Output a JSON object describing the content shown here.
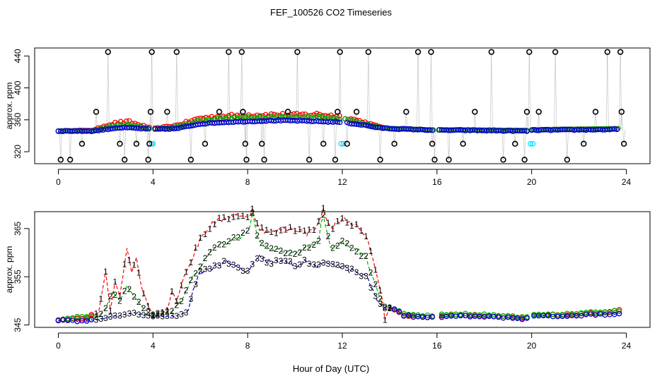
{
  "title": "FEF_100526  CO2 Timeseries",
  "xlabel": "Hour of Day (UTC)",
  "colors": {
    "series1": "#ff0000",
    "series2": "#00b000",
    "series3": "#0000cc",
    "flagged": "#000000",
    "cyan": "#00e0ff",
    "connector": "#999999"
  },
  "chart_data": [
    {
      "type": "scatter",
      "panel": "top",
      "ylabel": "approx. ppm",
      "xlim": [
        -1,
        25
      ],
      "ylim": [
        305,
        450
      ],
      "xticks": [
        0,
        4,
        8,
        12,
        16,
        20,
        24
      ],
      "yticks": [
        320,
        360,
        400,
        440
      ],
      "xtick_labels": [
        "0",
        "4",
        "8",
        "12",
        "16",
        "20",
        "24"
      ],
      "ytick_labels": [
        "320",
        "360",
        "400",
        "440"
      ],
      "baseline_keypoints": {
        "x": [
          0,
          1.5,
          2.0,
          2.5,
          3.0,
          3.5,
          3.9,
          4.0,
          5.0,
          5.5,
          6.0,
          6.5,
          7.0,
          8.0,
          9.0,
          10.0,
          11.0,
          12.0,
          12.5,
          13.0,
          13.5,
          14.0,
          15.0,
          15.9,
          16.0,
          17.0,
          19.8,
          20.0,
          23.7
        ],
        "y": [
          346,
          346,
          348,
          350,
          350,
          349,
          348,
          348,
          349,
          352,
          355,
          356,
          357,
          358,
          359,
          359,
          358,
          357,
          355,
          353,
          350,
          349,
          348,
          347,
          347,
          347,
          346,
          347,
          348
        ]
      },
      "series_offsets": {
        "series1": [
          [
            0,
            0
          ],
          [
            1.5,
            1
          ],
          [
            2.0,
            6
          ],
          [
            3.0,
            8
          ],
          [
            4.0,
            1
          ],
          [
            6.0,
            8
          ],
          [
            8.0,
            9
          ],
          [
            10.0,
            8
          ],
          [
            11.0,
            10
          ],
          [
            12.0,
            8
          ],
          [
            13.0,
            4
          ],
          [
            14.0,
            0
          ],
          [
            24.0,
            1
          ]
        ],
        "series2": [
          [
            0,
            0
          ],
          [
            1.5,
            0
          ],
          [
            2.0,
            3
          ],
          [
            3.0,
            4
          ],
          [
            4.0,
            0
          ],
          [
            6.0,
            5
          ],
          [
            8.0,
            6
          ],
          [
            10.0,
            5
          ],
          [
            11.0,
            7
          ],
          [
            12.0,
            5
          ],
          [
            13.0,
            2
          ],
          [
            14.0,
            0
          ],
          [
            24.0,
            1
          ]
        ]
      },
      "flagged_points": [
        [
          0.1,
          310
        ],
        [
          0.5,
          310
        ],
        [
          1.0,
          330
        ],
        [
          1.6,
          370
        ],
        [
          2.1,
          445
        ],
        [
          2.6,
          330
        ],
        [
          2.8,
          310
        ],
        [
          3.3,
          330
        ],
        [
          3.8,
          310
        ],
        [
          3.85,
          330
        ],
        [
          3.9,
          370
        ],
        [
          3.95,
          445
        ],
        [
          4.6,
          370
        ],
        [
          5.0,
          445
        ],
        [
          5.6,
          310
        ],
        [
          6.2,
          330
        ],
        [
          6.8,
          370
        ],
        [
          7.2,
          445
        ],
        [
          7.75,
          445
        ],
        [
          7.8,
          370
        ],
        [
          7.9,
          330
        ],
        [
          7.95,
          310
        ],
        [
          8.6,
          330
        ],
        [
          8.7,
          310
        ],
        [
          9.7,
          370
        ],
        [
          10.1,
          445
        ],
        [
          10.6,
          310
        ],
        [
          11.2,
          330
        ],
        [
          11.7,
          310
        ],
        [
          11.8,
          370
        ],
        [
          11.9,
          445
        ],
        [
          12.2,
          330
        ],
        [
          12.6,
          370
        ],
        [
          13.1,
          445
        ],
        [
          13.6,
          310
        ],
        [
          14.2,
          330
        ],
        [
          14.7,
          370
        ],
        [
          15.2,
          445
        ],
        [
          15.75,
          445
        ],
        [
          15.8,
          330
        ],
        [
          15.9,
          310
        ],
        [
          16.5,
          310
        ],
        [
          17.1,
          330
        ],
        [
          17.6,
          370
        ],
        [
          18.3,
          445
        ],
        [
          18.8,
          310
        ],
        [
          19.3,
          330
        ],
        [
          19.7,
          310
        ],
        [
          19.8,
          370
        ],
        [
          19.9,
          445
        ],
        [
          20.3,
          370
        ],
        [
          21.0,
          445
        ],
        [
          21.5,
          310
        ],
        [
          22.2,
          330
        ],
        [
          22.7,
          370
        ],
        [
          23.2,
          445
        ],
        [
          23.75,
          445
        ],
        [
          23.8,
          370
        ],
        [
          23.9,
          330
        ]
      ],
      "cyan_points": [
        [
          3.95,
          330
        ],
        [
          4.0,
          330
        ],
        [
          11.95,
          330
        ],
        [
          12.05,
          330
        ],
        [
          19.95,
          330
        ],
        [
          20.05,
          330
        ]
      ]
    },
    {
      "type": "line",
      "panel": "bottom",
      "ylabel": "approx. ppm",
      "xlim": [
        -1,
        25
      ],
      "ylim": [
        344.5,
        368.5
      ],
      "xticks": [
        0,
        4,
        8,
        12,
        16,
        20,
        24
      ],
      "yticks": [
        345,
        355,
        365
      ],
      "xtick_labels": [
        "0",
        "4",
        "8",
        "12",
        "16",
        "20",
        "24"
      ],
      "ytick_labels": [
        "345",
        "355",
        "365"
      ],
      "series": [
        {
          "name": "1",
          "keypoints": [
            [
              0,
              346
            ],
            [
              1.0,
              346.3
            ],
            [
              1.7,
              347.5
            ],
            [
              2.0,
              356
            ],
            [
              2.2,
              348
            ],
            [
              2.4,
              354
            ],
            [
              2.6,
              351
            ],
            [
              2.9,
              361
            ],
            [
              3.1,
              356
            ],
            [
              3.3,
              359
            ],
            [
              3.5,
              353
            ],
            [
              3.8,
              349
            ],
            [
              4.0,
              347
            ],
            [
              4.6,
              348
            ],
            [
              4.8,
              352
            ],
            [
              5.0,
              350
            ],
            [
              5.3,
              355
            ],
            [
              5.6,
              358
            ],
            [
              6.0,
              363
            ],
            [
              6.5,
              366
            ],
            [
              7.0,
              367
            ],
            [
              7.5,
              368
            ],
            [
              8.0,
              367
            ],
            [
              8.2,
              369
            ],
            [
              8.5,
              365
            ],
            [
              9.0,
              364
            ],
            [
              9.5,
              365
            ],
            [
              10.0,
              365
            ],
            [
              10.5,
              364
            ],
            [
              11.0,
              366
            ],
            [
              11.2,
              369
            ],
            [
              11.5,
              365
            ],
            [
              12.0,
              367
            ],
            [
              12.5,
              366
            ],
            [
              13.0,
              363
            ],
            [
              13.3,
              359
            ],
            [
              13.7,
              350
            ],
            [
              13.8,
              346
            ],
            [
              14.0,
              348.5
            ],
            [
              14.3,
              348
            ],
            [
              14.6,
              347
            ],
            [
              15.0,
              346.8
            ],
            [
              15.9,
              346.6
            ],
            [
              16.5,
              347.2
            ],
            [
              18.0,
              346.9
            ],
            [
              19.8,
              346.5
            ],
            [
              20.0,
              347
            ],
            [
              22.0,
              347.2
            ],
            [
              23.0,
              347.6
            ],
            [
              23.7,
              348
            ]
          ]
        },
        {
          "name": "2",
          "keypoints": [
            [
              0,
              346
            ],
            [
              0.5,
              346.5
            ],
            [
              1.7,
              346.8
            ],
            [
              2.0,
              348.5
            ],
            [
              2.3,
              352
            ],
            [
              2.6,
              350
            ],
            [
              2.9,
              353
            ],
            [
              3.2,
              351
            ],
            [
              3.5,
              349
            ],
            [
              4.0,
              347
            ],
            [
              4.8,
              348
            ],
            [
              5.2,
              350
            ],
            [
              5.6,
              354
            ],
            [
              6.0,
              357
            ],
            [
              6.5,
              361
            ],
            [
              7.0,
              362
            ],
            [
              7.5,
              363
            ],
            [
              8.0,
              364
            ],
            [
              8.2,
              368
            ],
            [
              8.5,
              362
            ],
            [
              9.0,
              361
            ],
            [
              9.5,
              360
            ],
            [
              10.0,
              360
            ],
            [
              10.5,
              361
            ],
            [
              11.0,
              363
            ],
            [
              11.2,
              368
            ],
            [
              11.5,
              361
            ],
            [
              12.0,
              362
            ],
            [
              12.5,
              361
            ],
            [
              13.0,
              359
            ],
            [
              13.3,
              355
            ],
            [
              13.7,
              349
            ],
            [
              14.0,
              348.6
            ],
            [
              14.3,
              348.2
            ],
            [
              14.6,
              347.3
            ],
            [
              15.0,
              347
            ],
            [
              15.9,
              346.8
            ],
            [
              16.5,
              347.3
            ],
            [
              18.0,
              347.1
            ],
            [
              19.8,
              346.5
            ],
            [
              20.0,
              347
            ],
            [
              22.0,
              347.3
            ],
            [
              23.0,
              347.8
            ],
            [
              23.7,
              348
            ]
          ]
        },
        {
          "name": "3",
          "keypoints": [
            [
              0,
              346
            ],
            [
              1.0,
              345.8
            ],
            [
              1.7,
              346.2
            ],
            [
              2.5,
              346.8
            ],
            [
              3.0,
              347.5
            ],
            [
              3.5,
              347.2
            ],
            [
              4.0,
              346.8
            ],
            [
              5.0,
              346.8
            ],
            [
              5.5,
              348
            ],
            [
              5.7,
              352
            ],
            [
              6.0,
              356
            ],
            [
              6.5,
              357
            ],
            [
              7.0,
              358
            ],
            [
              7.5,
              357
            ],
            [
              8.0,
              356
            ],
            [
              8.5,
              359
            ],
            [
              9.0,
              358
            ],
            [
              9.5,
              358
            ],
            [
              10.0,
              357.5
            ],
            [
              10.5,
              358
            ],
            [
              11.0,
              357
            ],
            [
              11.5,
              358
            ],
            [
              12.0,
              357
            ],
            [
              12.5,
              356
            ],
            [
              13.0,
              355
            ],
            [
              13.3,
              352
            ],
            [
              13.5,
              350
            ],
            [
              13.7,
              348.6
            ],
            [
              14.3,
              348.3
            ],
            [
              14.6,
              347
            ],
            [
              15.0,
              346.8
            ],
            [
              15.9,
              346.6
            ],
            [
              16.5,
              346.9
            ],
            [
              18.0,
              346.7
            ],
            [
              19.8,
              346.3
            ],
            [
              20.0,
              346.8
            ],
            [
              22.0,
              347
            ],
            [
              23.0,
              347.2
            ],
            [
              23.7,
              347.4
            ]
          ]
        }
      ],
      "gaps": [
        [
          15.85,
          16.0
        ],
        [
          19.85,
          20.0
        ]
      ]
    }
  ]
}
